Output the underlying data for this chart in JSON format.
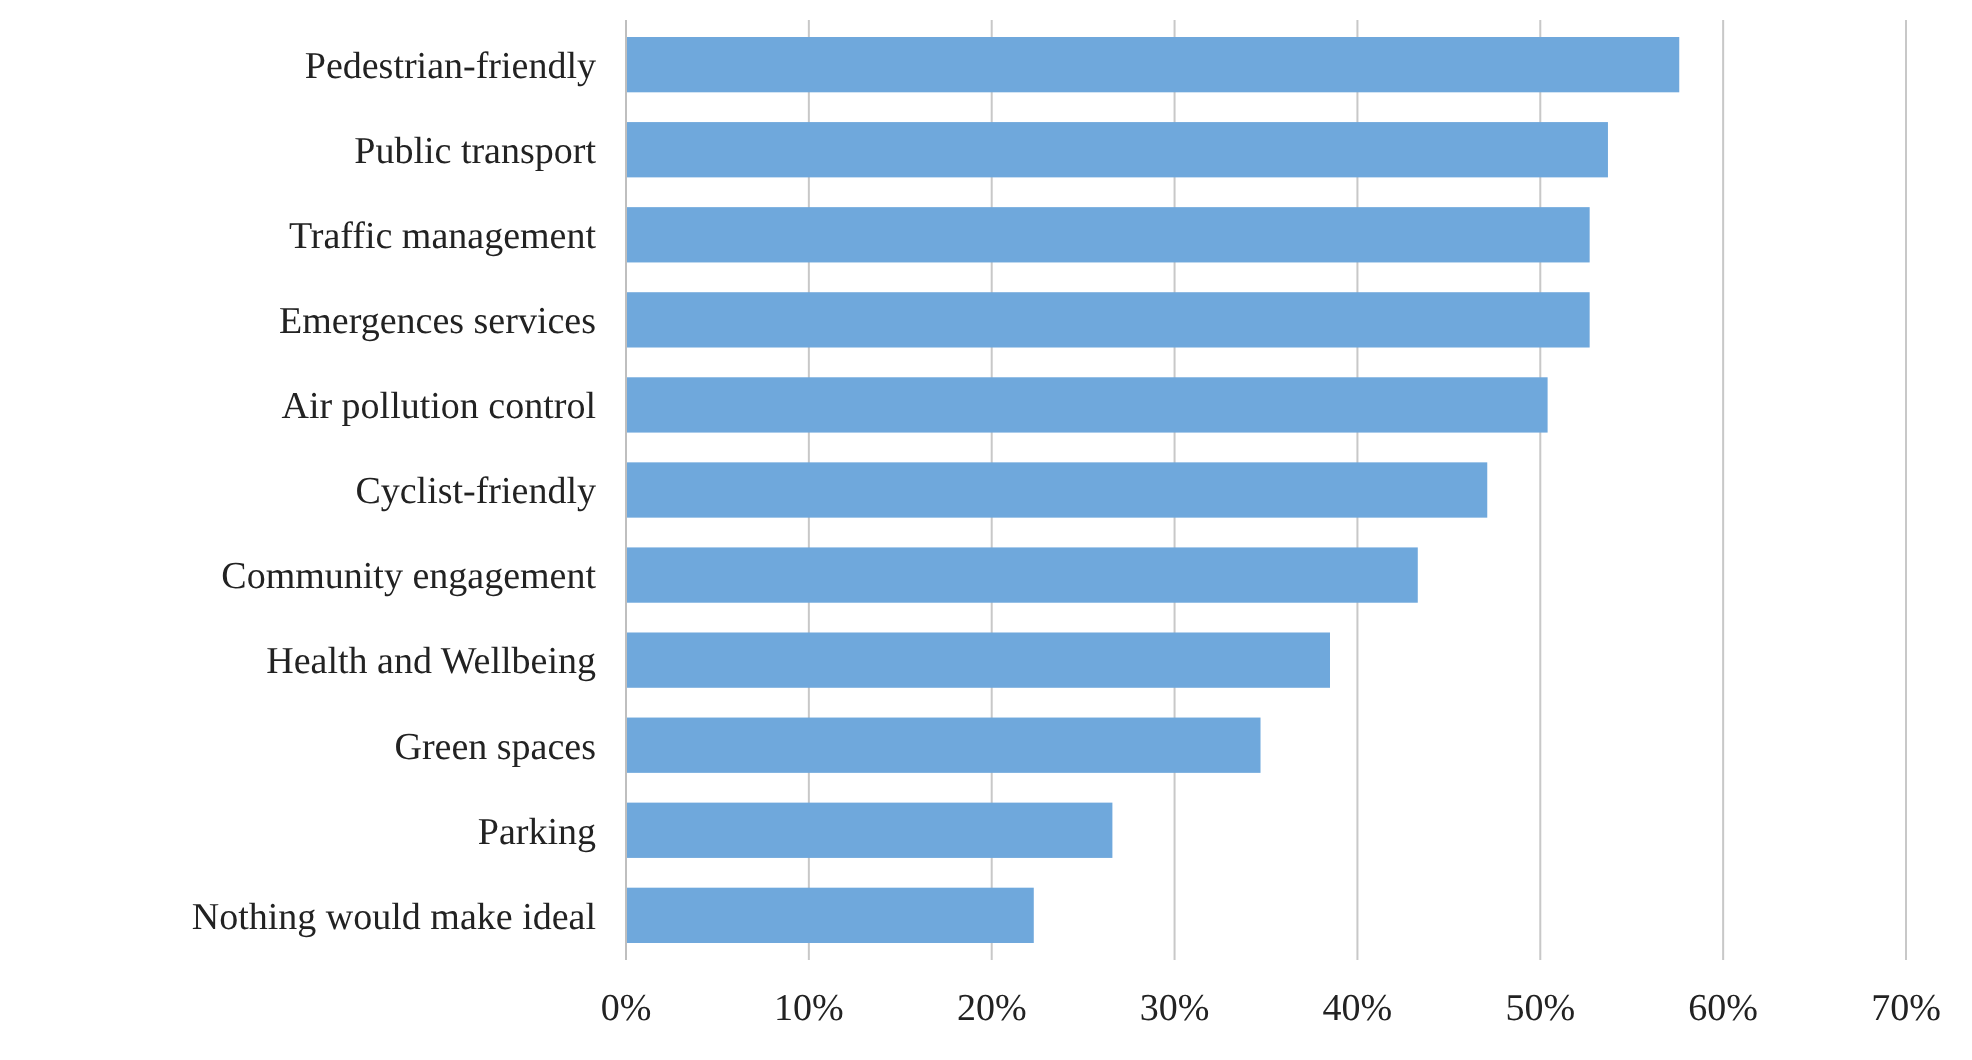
{
  "chart_data": {
    "type": "bar",
    "orientation": "horizontal",
    "categories": [
      "Pedestrian-friendly",
      "Public transport",
      "Traffic management",
      "Emergences services",
      "Air pollution control",
      "Cyclist-friendly",
      "Community engagement",
      "Health and Wellbeing",
      "Green spaces",
      "Parking",
      "Nothing would make ideal"
    ],
    "values": [
      57.6,
      53.7,
      52.7,
      52.7,
      50.4,
      47.1,
      43.3,
      38.5,
      34.7,
      26.6,
      22.3
    ],
    "color": "#6fa8dc",
    "xlim": [
      0,
      70
    ],
    "xticks": [
      {
        "value": 0,
        "label": "0%"
      },
      {
        "value": 10,
        "label": "10%"
      },
      {
        "value": 20,
        "label": "20%"
      },
      {
        "value": 30,
        "label": "30%"
      },
      {
        "value": 40,
        "label": "40%"
      },
      {
        "value": 50,
        "label": "50%"
      },
      {
        "value": 60,
        "label": "60%"
      },
      {
        "value": 70,
        "label": "70%"
      }
    ],
    "grid": "x"
  }
}
